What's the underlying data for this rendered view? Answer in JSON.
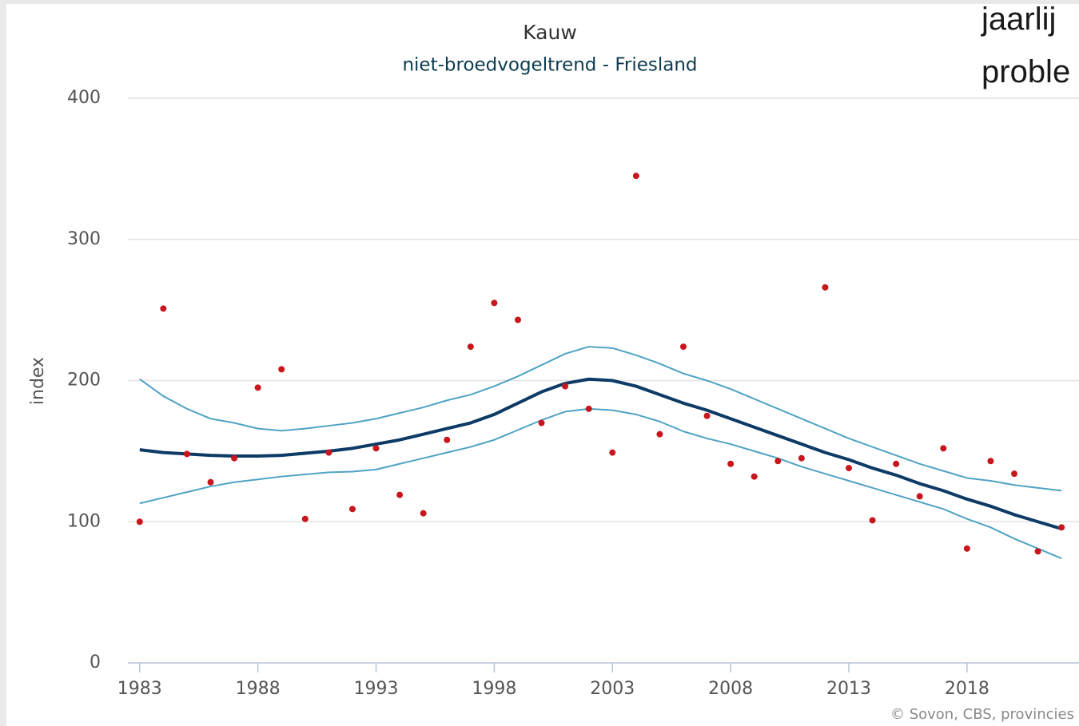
{
  "chart_data": {
    "type": "line",
    "title": "Kauw",
    "subtitle": "niet-broedvogeltrend - Friesland",
    "y_label": "index",
    "credit": "© Sovon, CBS, provincies",
    "overlay_lines": [
      "jaarlij",
      "proble"
    ],
    "x": [
      1983,
      1984,
      1985,
      1986,
      1987,
      1988,
      1989,
      1990,
      1991,
      1992,
      1993,
      1994,
      1995,
      1996,
      1997,
      1998,
      1999,
      2000,
      2001,
      2002,
      2003,
      2004,
      2005,
      2006,
      2007,
      2008,
      2009,
      2010,
      2011,
      2012,
      2013,
      2014,
      2015,
      2016,
      2017,
      2018,
      2019,
      2020,
      2021,
      2022
    ],
    "series": [
      {
        "mode": "line",
        "color": "#4fa3c4",
        "width": 2,
        "values": [
          201,
          189,
          180,
          173,
          170,
          166,
          164.5,
          166,
          168,
          170,
          173,
          177,
          181,
          186,
          190,
          196,
          203,
          211,
          219,
          224,
          223,
          218,
          212,
          205,
          200,
          194,
          187,
          180,
          173,
          166,
          159,
          153,
          147,
          141,
          136,
          131,
          129,
          126,
          124,
          122
        ]
      },
      {
        "mode": "line",
        "color": "#4fa3c4",
        "width": 2,
        "values": [
          113,
          117,
          121,
          125,
          128,
          130,
          132,
          133.5,
          135,
          135.5,
          137,
          141,
          145,
          149,
          153,
          158,
          165,
          172,
          178,
          180,
          179,
          176,
          171,
          164,
          159,
          155,
          150,
          145,
          139,
          134,
          129,
          124,
          119,
          114,
          109,
          102,
          96,
          88,
          81,
          74
        ]
      },
      {
        "mode": "line",
        "color": "#0d3b66",
        "width": 4,
        "values": [
          151,
          149,
          148,
          147,
          146.5,
          146.5,
          147,
          148.5,
          150,
          152,
          155,
          158,
          162,
          166,
          170,
          176,
          184,
          192,
          198,
          201,
          200,
          196,
          190,
          184,
          179,
          173,
          167,
          161,
          155,
          149,
          144,
          138,
          133,
          127,
          122,
          116,
          111,
          105,
          100,
          95
        ]
      },
      {
        "mode": "markers",
        "color": "#c8161d",
        "width": 4,
        "values": [
          100,
          251,
          148,
          128,
          145,
          195,
          208,
          102,
          149,
          109,
          152,
          119,
          106,
          158,
          224,
          255,
          243,
          170,
          196,
          180,
          149,
          345,
          162,
          224,
          175,
          141,
          132,
          143,
          145,
          266,
          138,
          101,
          141,
          118,
          152,
          81,
          143,
          134,
          79,
          96
        ]
      }
    ],
    "xlim": [
      1982.5,
      2022.4
    ],
    "xticks": [
      1983,
      1988,
      1993,
      1998,
      2003,
      2008,
      2013,
      2018
    ],
    "ylim": [
      0,
      400
    ],
    "yticks": [
      0,
      100,
      200,
      300,
      400
    ],
    "grid": true
  }
}
